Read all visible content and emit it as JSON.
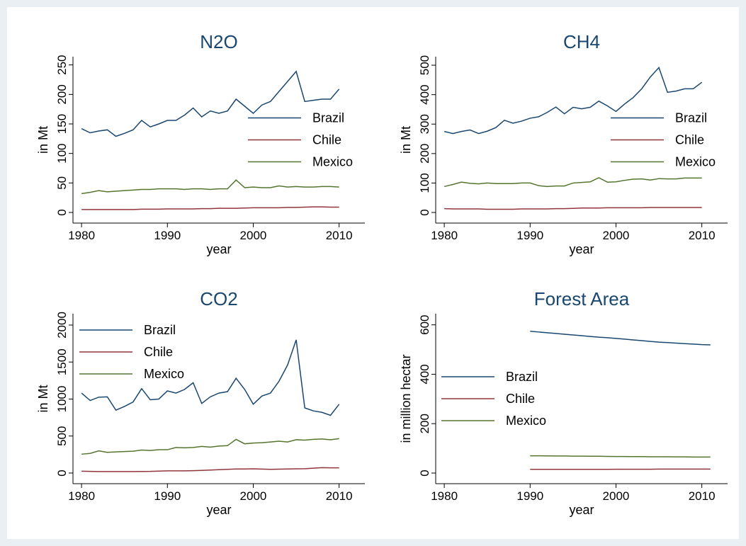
{
  "chart_data": [
    {
      "type": "line",
      "title": "N2O",
      "x_label": "year",
      "y_label": "in Mt",
      "x": [
        1980,
        1981,
        1982,
        1983,
        1984,
        1985,
        1986,
        1987,
        1988,
        1989,
        1990,
        1991,
        1992,
        1993,
        1994,
        1995,
        1996,
        1997,
        1998,
        1999,
        2000,
        2001,
        2002,
        2003,
        2004,
        2005,
        2006,
        2007,
        2008,
        2009,
        2010
      ],
      "series": [
        {
          "name": "Brazil",
          "color": "#1a476f",
          "values": [
            142,
            135,
            138,
            140,
            129,
            134,
            140,
            156,
            145,
            150,
            156,
            156,
            165,
            177,
            162,
            172,
            168,
            172,
            192,
            180,
            168,
            182,
            188,
            205,
            222,
            239,
            188,
            190,
            192,
            192,
            209
          ]
        },
        {
          "name": "Chile",
          "color": "#90353b",
          "values": [
            5,
            5,
            5,
            5,
            5,
            5,
            5,
            5.5,
            5.5,
            5.5,
            6,
            6,
            6,
            6,
            6.5,
            6.5,
            7,
            7,
            7,
            7.5,
            8,
            8,
            8,
            8,
            8.5,
            8.5,
            9,
            9.5,
            9.5,
            9,
            9
          ]
        },
        {
          "name": "Mexico",
          "color": "#55752f",
          "values": [
            32,
            34,
            37,
            35,
            36,
            37,
            38,
            39,
            39,
            40,
            40,
            40,
            39,
            40,
            40,
            39,
            40,
            40,
            55,
            42,
            43,
            42,
            42,
            45,
            43,
            44,
            43,
            43,
            44,
            44,
            43
          ]
        }
      ],
      "xlim": [
        1979,
        2013
      ],
      "ylim": [
        -18,
        264
      ],
      "xticks": [
        1980,
        1990,
        2000,
        2010
      ],
      "yticks": [
        0,
        50,
        100,
        150,
        200,
        250
      ],
      "legend_position": "right"
    },
    {
      "type": "line",
      "title": "CH4",
      "x_label": "year",
      "y_label": "in Mt",
      "x": [
        1980,
        1981,
        1982,
        1983,
        1984,
        1985,
        1986,
        1987,
        1988,
        1989,
        1990,
        1991,
        1992,
        1993,
        1994,
        1995,
        1996,
        1997,
        1998,
        1999,
        2000,
        2001,
        2002,
        2003,
        2004,
        2005,
        2006,
        2007,
        2008,
        2009,
        2010
      ],
      "series": [
        {
          "name": "Brazil",
          "color": "#1a476f",
          "values": [
            275,
            268,
            275,
            280,
            268,
            276,
            288,
            313,
            303,
            310,
            320,
            325,
            340,
            358,
            335,
            357,
            352,
            357,
            378,
            362,
            343,
            368,
            390,
            420,
            460,
            492,
            408,
            412,
            420,
            420,
            442
          ]
        },
        {
          "name": "Chile",
          "color": "#90353b",
          "values": [
            13,
            12,
            12,
            12,
            12,
            11,
            11,
            11,
            11,
            12,
            12,
            12,
            12,
            13,
            13,
            14,
            15,
            15,
            15,
            16,
            16,
            16,
            16,
            16,
            17,
            17,
            17,
            17,
            17,
            17,
            17
          ]
        },
        {
          "name": "Mexico",
          "color": "#55752f",
          "values": [
            88,
            95,
            103,
            99,
            97,
            100,
            98,
            98,
            98,
            100,
            100,
            91,
            88,
            90,
            90,
            100,
            102,
            104,
            118,
            103,
            104,
            109,
            113,
            114,
            110,
            115,
            114,
            114,
            117,
            117,
            117
          ]
        }
      ],
      "xlim": [
        1979,
        2013
      ],
      "ylim": [
        -36,
        529
      ],
      "xticks": [
        1980,
        1990,
        2000,
        2010
      ],
      "yticks": [
        0,
        100,
        200,
        300,
        400,
        500
      ],
      "legend_position": "right"
    },
    {
      "type": "line",
      "title": "CO2",
      "x_label": "year",
      "y_label": "in Mt",
      "x": [
        1980,
        1981,
        1982,
        1983,
        1984,
        1985,
        1986,
        1987,
        1988,
        1989,
        1990,
        1991,
        1992,
        1993,
        1994,
        1995,
        1996,
        1997,
        1998,
        1999,
        2000,
        2001,
        2002,
        2003,
        2004,
        2005,
        2006,
        2007,
        2008,
        2009,
        2010
      ],
      "series": [
        {
          "name": "Brazil",
          "color": "#1a476f",
          "values": [
            1080,
            980,
            1025,
            1030,
            850,
            900,
            960,
            1140,
            990,
            1000,
            1110,
            1080,
            1130,
            1220,
            940,
            1030,
            1080,
            1100,
            1280,
            1130,
            930,
            1040,
            1080,
            1240,
            1460,
            1800,
            880,
            840,
            820,
            780,
            930
          ]
        },
        {
          "name": "Chile",
          "color": "#90353b",
          "values": [
            25,
            22,
            20,
            20,
            20,
            20,
            20,
            21,
            22,
            26,
            30,
            30,
            30,
            32,
            35,
            40,
            45,
            50,
            55,
            55,
            57,
            53,
            50,
            52,
            55,
            57,
            58,
            65,
            72,
            70,
            70
          ]
        },
        {
          "name": "Mexico",
          "color": "#55752f",
          "values": [
            255,
            265,
            300,
            280,
            285,
            290,
            295,
            310,
            305,
            315,
            315,
            345,
            340,
            345,
            360,
            350,
            365,
            370,
            455,
            395,
            405,
            410,
            420,
            430,
            420,
            450,
            445,
            455,
            460,
            450,
            465
          ]
        }
      ],
      "xlim": [
        1979,
        2013
      ],
      "ylim": [
        -144,
        2153
      ],
      "xticks": [
        1980,
        1990,
        2000,
        2010
      ],
      "yticks": [
        0,
        500,
        1000,
        1500,
        2000
      ],
      "legend_position": "top-left"
    },
    {
      "type": "line",
      "title": "Forest Area",
      "x_label": "year",
      "y_label": "in million hectar",
      "x": [
        1990,
        1991,
        1992,
        1993,
        1994,
        1995,
        1996,
        1997,
        1998,
        1999,
        2000,
        2001,
        2002,
        2003,
        2004,
        2005,
        2006,
        2007,
        2008,
        2009,
        2010,
        2011
      ],
      "series": [
        {
          "name": "Brazil",
          "color": "#1a476f",
          "values": [
            574,
            571,
            568,
            565,
            562,
            559,
            556,
            553,
            550,
            548,
            545,
            542,
            539,
            536,
            533,
            530,
            528,
            526,
            524,
            522,
            520,
            519
          ]
        },
        {
          "name": "Chile",
          "color": "#90353b",
          "values": [
            15,
            15,
            15,
            15,
            15,
            15,
            15,
            15,
            15,
            15,
            15.5,
            15.5,
            15.5,
            15.5,
            15.5,
            16,
            16,
            16,
            16,
            16,
            16,
            16
          ]
        },
        {
          "name": "Mexico",
          "color": "#55752f",
          "values": [
            70,
            70,
            69.5,
            69,
            69,
            68.5,
            68.5,
            68,
            68,
            67.5,
            67,
            67,
            66.5,
            66.5,
            66,
            66,
            66,
            65.5,
            65.5,
            65,
            65,
            65
          ]
        }
      ],
      "xlim": [
        1979,
        2013
      ],
      "ylim": [
        -43,
        645
      ],
      "xticks": [
        1980,
        1990,
        2000,
        2010
      ],
      "yticks": [
        0,
        200,
        400,
        600
      ],
      "legend_position": "left"
    }
  ]
}
